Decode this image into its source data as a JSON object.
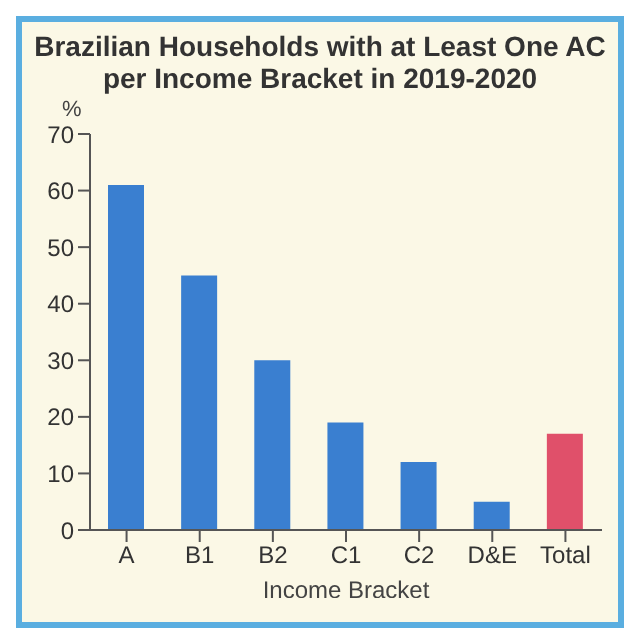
{
  "chart_data": {
    "type": "bar",
    "title": "Brazilian Households with at Least One AC per Income Bracket in 2019-2020",
    "xlabel": "Income Bracket",
    "ylabel": "%",
    "categories": [
      "A",
      "B1",
      "B2",
      "C1",
      "C2",
      "D&E",
      "Total"
    ],
    "values": [
      61,
      45,
      30,
      19,
      12,
      5,
      17
    ],
    "colors": [
      "#3a7fd0",
      "#3a7fd0",
      "#3a7fd0",
      "#3a7fd0",
      "#3a7fd0",
      "#3a7fd0",
      "#e0506a"
    ],
    "ylim": [
      0,
      70
    ],
    "yticks": [
      0,
      10,
      20,
      30,
      40,
      50,
      60,
      70
    ],
    "grid": false,
    "legend": false
  }
}
